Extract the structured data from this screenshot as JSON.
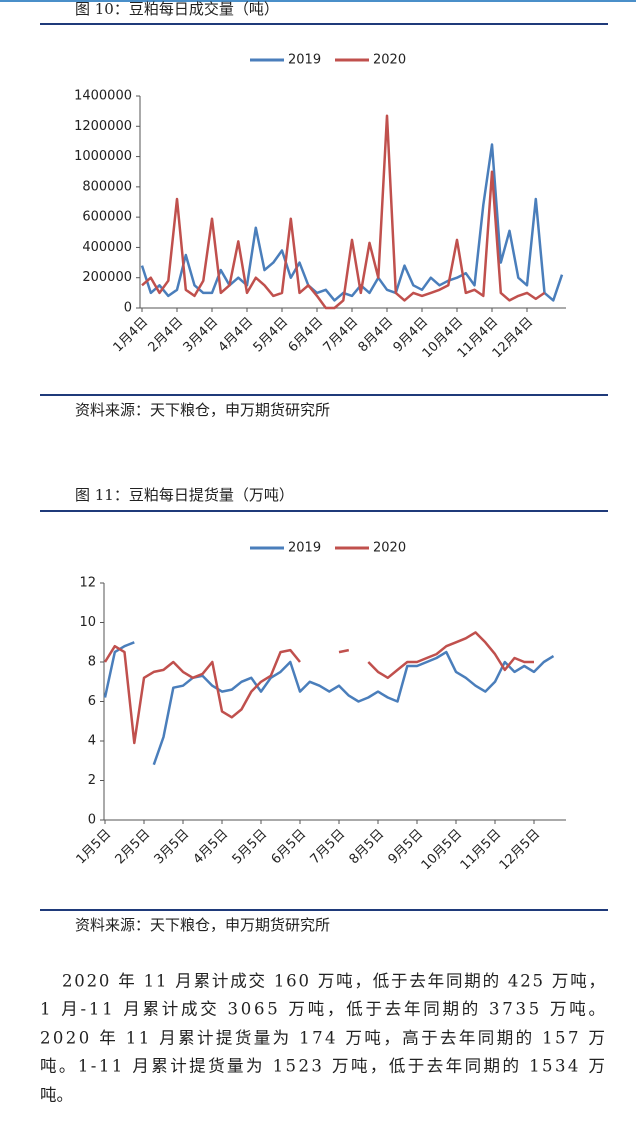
{
  "chart_data": [
    {
      "type": "line",
      "title": "图 10：豆粕每日成交量（吨）",
      "source": "资料来源：天下粮仓，申万期货研究所",
      "categories": [
        "1月4日",
        null,
        null,
        null,
        "2月4日",
        null,
        null,
        null,
        "3月4日",
        null,
        null,
        null,
        "4月4日",
        null,
        null,
        null,
        "5月4日",
        null,
        null,
        null,
        "6月4日",
        null,
        null,
        null,
        "7月4日",
        null,
        null,
        null,
        "8月4日",
        null,
        null,
        null,
        "9月4日",
        null,
        null,
        null,
        "10月4日",
        null,
        null,
        null,
        "11月4日",
        null,
        null,
        null,
        "12月4日",
        null,
        null,
        null,
        null
      ],
      "series": [
        {
          "name": "2019",
          "color": "#4a7ebb",
          "values": [
            280000,
            100000,
            150000,
            80000,
            120000,
            350000,
            150000,
            100000,
            100000,
            250000,
            150000,
            200000,
            150000,
            530000,
            250000,
            300000,
            380000,
            200000,
            300000,
            150000,
            100000,
            120000,
            50000,
            100000,
            80000,
            150000,
            100000,
            200000,
            120000,
            100000,
            280000,
            150000,
            120000,
            200000,
            150000,
            180000,
            200000,
            230000,
            150000,
            680000,
            1080000,
            300000,
            510000,
            200000,
            150000,
            720000,
            100000,
            50000,
            220000
          ]
        },
        {
          "name": "2020",
          "color": "#c0504d",
          "values": [
            150000,
            200000,
            100000,
            180000,
            720000,
            120000,
            80000,
            180000,
            590000,
            100000,
            150000,
            440000,
            100000,
            200000,
            150000,
            80000,
            100000,
            590000,
            100000,
            150000,
            80000,
            0,
            0,
            50000,
            450000,
            100000,
            430000,
            200000,
            1270000,
            100000,
            50000,
            100000,
            80000,
            100000,
            120000,
            150000,
            450000,
            100000,
            120000,
            80000,
            900000,
            100000,
            50000,
            80000,
            100000,
            60000,
            100000,
            null,
            null
          ]
        }
      ],
      "ylim": [
        0,
        1400000
      ],
      "yticks": [
        0,
        200000,
        400000,
        600000,
        800000,
        1000000,
        1200000,
        1400000
      ]
    },
    {
      "type": "line",
      "title": "图 11：豆粕每日提货量（万吨）",
      "source": "资料来源：天下粮仓，申万期货研究所",
      "categories": [
        "1月5日",
        null,
        null,
        null,
        "2月5日",
        null,
        null,
        null,
        "3月5日",
        null,
        null,
        null,
        "4月5日",
        null,
        null,
        null,
        "5月5日",
        null,
        null,
        null,
        "6月5日",
        null,
        null,
        null,
        "7月5日",
        null,
        null,
        null,
        "8月5日",
        null,
        null,
        null,
        "9月5日",
        null,
        null,
        null,
        "10月5日",
        null,
        null,
        null,
        "11月5日",
        null,
        null,
        null,
        "12月5日",
        null,
        null
      ],
      "series": [
        {
          "name": "2019",
          "color": "#4a7ebb",
          "values": [
            6.2,
            8.5,
            8.8,
            9.0,
            null,
            2.8,
            4.2,
            6.7,
            6.8,
            7.2,
            7.3,
            6.8,
            6.5,
            6.6,
            7.0,
            7.2,
            6.5,
            7.2,
            7.5,
            8.0,
            6.5,
            7.0,
            6.8,
            6.5,
            6.8,
            6.3,
            6.0,
            6.2,
            6.5,
            6.2,
            6.0,
            7.8,
            7.8,
            8.0,
            8.2,
            8.5,
            7.5,
            7.2,
            6.8,
            6.5,
            7.0,
            8.0,
            7.5,
            7.8,
            7.5,
            8.0,
            8.3
          ]
        },
        {
          "name": "2020",
          "color": "#c0504d",
          "values": [
            8.0,
            8.8,
            8.5,
            3.9,
            7.2,
            7.5,
            7.6,
            8.0,
            7.5,
            7.2,
            7.4,
            8.0,
            5.5,
            5.2,
            5.6,
            6.5,
            7.0,
            7.3,
            8.5,
            8.6,
            8.0,
            null,
            null,
            null,
            8.5,
            8.6,
            null,
            8.0,
            7.5,
            7.2,
            7.6,
            8.0,
            8.0,
            8.2,
            8.4,
            8.8,
            9.0,
            9.2,
            9.5,
            9.0,
            8.4,
            7.6,
            8.2,
            8.0,
            8.0,
            null,
            null
          ]
        }
      ],
      "ylim": [
        0,
        12
      ],
      "yticks": [
        0,
        2,
        4,
        6,
        8,
        10,
        12
      ]
    }
  ],
  "paragraph": [
    "2020 年 11 月累计成交 160 万吨，低于去年同期的 425 万吨，",
    "1 月-11 月累计成交 3065 万吨，低于去年同期的 3735 万吨。",
    "2020 年 11 月累计提货量为 174 万吨，高于去年同期的 157 万",
    "吨。1-11 月累计提货量为 1523 万吨，低于去年同期的 1534 万",
    "吨。"
  ]
}
